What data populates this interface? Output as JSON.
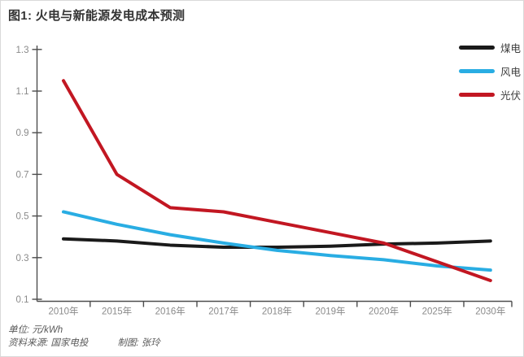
{
  "title": "图1: 火电与新能源发电成本预测",
  "chart_data": {
    "type": "line",
    "title": "图1: 火电与新能源发电成本预测",
    "unit": "元/kWh",
    "categories": [
      "2010年",
      "2015年",
      "2016年",
      "2017年",
      "2018年",
      "2019年",
      "2020年",
      "2025年",
      "2030年"
    ],
    "series": [
      {
        "name": "煤电",
        "color": "#1a1a1a",
        "values": [
          0.39,
          0.38,
          0.36,
          0.35,
          0.35,
          0.355,
          0.365,
          0.37,
          0.38
        ]
      },
      {
        "name": "风电",
        "color": "#29ade3",
        "values": [
          0.52,
          0.46,
          0.41,
          0.37,
          0.335,
          0.31,
          0.29,
          0.26,
          0.24
        ]
      },
      {
        "name": "光伏",
        "color": "#c21722",
        "values": [
          1.15,
          0.7,
          0.54,
          0.52,
          0.47,
          0.42,
          0.37,
          0.28,
          0.19
        ]
      }
    ],
    "ylim": [
      0.1,
      1.3
    ],
    "yticks": [
      "1.3",
      "1.1",
      "0.9",
      "0.7",
      "0.5",
      "0.3",
      "0.1"
    ],
    "xlabel": "",
    "ylabel": "",
    "grid": false,
    "legend_position": "top-right"
  },
  "footer": {
    "unit": "单位: 元/kWh",
    "source": "资料来源: 国家电投",
    "credit": "制图: 张玲"
  },
  "colors": {
    "axis": "#4d4d4d",
    "tick_text": "#8a8a8a",
    "title_text": "#333333",
    "border": "#d9d9d9"
  }
}
